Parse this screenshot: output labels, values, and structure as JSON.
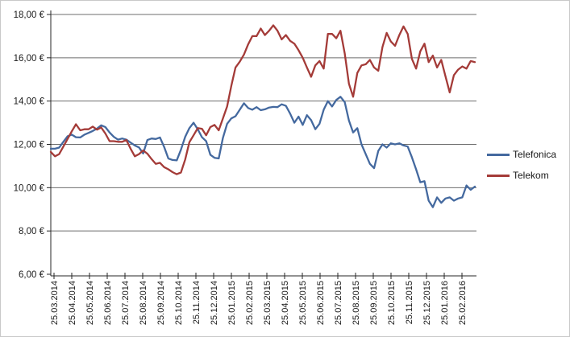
{
  "chart": {
    "legend": {
      "telefonica_label": "Telefonica",
      "telekom_label": "Telekom"
    },
    "colors": {
      "telefonica": "#44699f",
      "telekom": "#a43b38",
      "gridline": "#6e6e6e",
      "axis": "#262626",
      "tick_text": "#1a1a1a"
    }
  },
  "chart_data": {
    "type": "line",
    "title": "",
    "xlabel": "",
    "ylabel": "",
    "ylim": [
      6,
      18
    ],
    "y_step": 2,
    "grid": "horizontal",
    "legend_position": "right",
    "y_tick_labels": [
      "18,00 €",
      "16,00 €",
      "14,00 €",
      "12,00 €",
      "10,00 €",
      "8,00 €",
      "6,00 €"
    ],
    "x_labels": [
      "25.03.2014",
      "25.04.2014",
      "25.05.2014",
      "25.06.2014",
      "25.07.2014",
      "25.08.2014",
      "25.09.2014",
      "25.10.2014",
      "25.11.2014",
      "25.12.2014",
      "25.01.2015",
      "25.02.2015",
      "25.03.2015",
      "25.04.2015",
      "25.05.2015",
      "25.06.2015",
      "25.07.2015",
      "25.08.2015",
      "25.09.2015",
      "25.10.2015",
      "25.11.2015",
      "25.12.2015",
      "25.01.2016",
      "25.02.2016"
    ],
    "series": [
      {
        "name": "Telefonica",
        "color": "#44699f",
        "values": [
          11.8,
          11.8,
          11.85,
          12.12,
          12.37,
          12.45,
          12.33,
          12.32,
          12.45,
          12.53,
          12.62,
          12.73,
          12.88,
          12.8,
          12.55,
          12.35,
          12.22,
          12.27,
          12.22,
          12.08,
          11.95,
          11.86,
          11.58,
          12.2,
          12.27,
          12.25,
          12.32,
          11.88,
          11.35,
          11.28,
          11.26,
          11.75,
          12.35,
          12.75,
          13.0,
          12.7,
          12.33,
          12.15,
          11.52,
          11.38,
          11.35,
          12.3,
          12.95,
          13.2,
          13.3,
          13.6,
          13.9,
          13.68,
          13.6,
          13.72,
          13.58,
          13.62,
          13.7,
          13.73,
          13.72,
          13.85,
          13.78,
          13.42,
          13.0,
          13.28,
          12.9,
          13.35,
          13.12,
          12.7,
          12.95,
          13.6,
          14.0,
          13.75,
          14.05,
          14.2,
          13.95,
          13.1,
          12.55,
          12.75,
          12.0,
          11.55,
          11.1,
          10.9,
          11.7,
          12.0,
          11.85,
          12.05,
          12.0,
          12.05,
          11.95,
          11.9,
          11.4,
          10.85,
          10.25,
          10.3,
          9.4,
          9.1,
          9.55,
          9.3,
          9.5,
          9.55,
          9.4,
          9.5,
          9.55,
          10.1,
          9.9,
          10.05
        ]
      },
      {
        "name": "Telekom",
        "color": "#a43b38",
        "values": [
          11.65,
          11.45,
          11.55,
          11.9,
          12.25,
          12.6,
          12.93,
          12.65,
          12.7,
          12.7,
          12.82,
          12.68,
          12.78,
          12.5,
          12.15,
          12.15,
          12.12,
          12.12,
          12.2,
          11.8,
          11.45,
          11.55,
          11.72,
          11.57,
          11.32,
          11.1,
          11.15,
          10.95,
          10.85,
          10.72,
          10.62,
          10.7,
          11.3,
          12.1,
          12.42,
          12.75,
          12.72,
          12.42,
          12.8,
          12.9,
          12.65,
          13.2,
          13.75,
          14.7,
          15.55,
          15.82,
          16.15,
          16.62,
          17.0,
          17.0,
          17.35,
          17.05,
          17.25,
          17.5,
          17.25,
          16.85,
          17.05,
          16.78,
          16.65,
          16.35,
          16.0,
          15.55,
          15.12,
          15.65,
          15.85,
          15.5,
          17.1,
          17.1,
          16.9,
          17.25,
          16.2,
          14.8,
          14.2,
          15.3,
          15.65,
          15.7,
          15.9,
          15.55,
          15.4,
          16.5,
          17.15,
          16.75,
          16.55,
          17.05,
          17.45,
          17.1,
          15.95,
          15.5,
          16.3,
          16.65,
          15.8,
          16.1,
          15.55,
          15.9,
          15.15,
          14.4,
          15.2,
          15.45,
          15.6,
          15.5,
          15.85,
          15.8
        ]
      }
    ]
  }
}
